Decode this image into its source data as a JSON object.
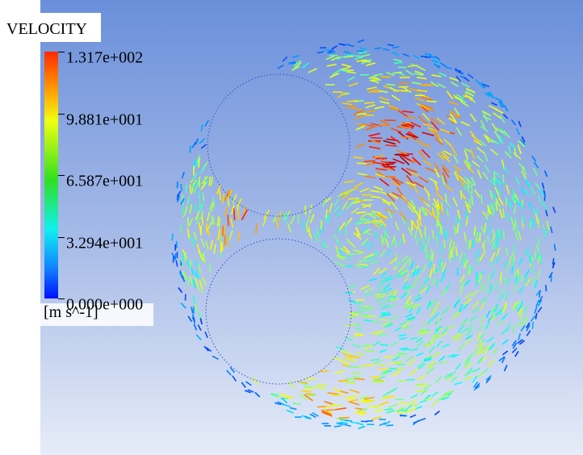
{
  "legend": {
    "title": "VELOCITY",
    "ticks": [
      "1.317e+002",
      "9.881e+001",
      "6.587e+001",
      "3.294e+001",
      "0.000e+000"
    ],
    "unit": "[m s^-1]"
  }
}
